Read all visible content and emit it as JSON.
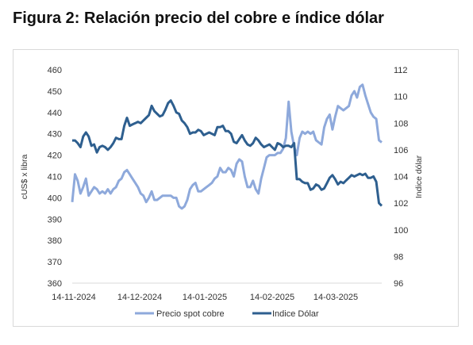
{
  "figure_title": "Figura 2: Relación precio del cobre e índice dólar",
  "chart_data": {
    "type": "line",
    "title": "",
    "ylabel": "cUS$ x libra",
    "y2label": "Indice dólar",
    "ylim": [
      360,
      460
    ],
    "y2lim": [
      96,
      112
    ],
    "yticks": [
      "460",
      "450",
      "440",
      "430",
      "420",
      "410",
      "400",
      "390",
      "380",
      "370",
      "360"
    ],
    "y2ticks": [
      "112",
      "110",
      "108",
      "106",
      "104",
      "102",
      "100",
      "98",
      "96"
    ],
    "xticks": [
      "14-11-2024",
      "14-12-2024",
      "14-01-2025",
      "14-02-2025",
      "14-03-2025"
    ],
    "grid": false,
    "legend_position": "bottom",
    "series": [
      {
        "name": "Precio spot cobre",
        "axis": "left",
        "color": "#8ea9db",
        "values": [
          398,
          411,
          408,
          402,
          405,
          409,
          401,
          403,
          405,
          404,
          402,
          403,
          402,
          404,
          402,
          404,
          405,
          408,
          409,
          412,
          413,
          411,
          409,
          407,
          405,
          402,
          401,
          398,
          400,
          403,
          399,
          399,
          400,
          401,
          401,
          401,
          401,
          400,
          400,
          396,
          395,
          396,
          399,
          404,
          406,
          407,
          403,
          403,
          404,
          405,
          406,
          407,
          409,
          410,
          414,
          412,
          412,
          414,
          413,
          410,
          416,
          418,
          417,
          410,
          405,
          405,
          408,
          404,
          402,
          409,
          414,
          419,
          420,
          420,
          420,
          421,
          421,
          423,
          428,
          445,
          431,
          424,
          420,
          428,
          431,
          430,
          431,
          430,
          431,
          427,
          426,
          425,
          433,
          437,
          439,
          432,
          438,
          443,
          442,
          441,
          442,
          443,
          448,
          450,
          447,
          452,
          453,
          448,
          444,
          440,
          438,
          437,
          427,
          426
        ]
      },
      {
        "name": "Indice Dólar",
        "axis": "right",
        "color": "#2e5f8f",
        "values": [
          106.7,
          106.7,
          106.5,
          106.2,
          107.0,
          107.3,
          107.0,
          106.3,
          106.4,
          105.8,
          106.2,
          106.3,
          106.2,
          106.0,
          106.2,
          106.5,
          106.9,
          106.8,
          106.8,
          107.8,
          108.4,
          107.8,
          107.9,
          108.0,
          108.1,
          108.0,
          108.2,
          108.4,
          108.6,
          109.3,
          108.9,
          108.7,
          108.5,
          108.6,
          109.0,
          109.5,
          109.7,
          109.3,
          108.8,
          108.7,
          108.2,
          108.0,
          107.7,
          107.2,
          107.3,
          107.3,
          107.5,
          107.4,
          107.1,
          107.2,
          107.3,
          107.2,
          107.1,
          107.7,
          107.7,
          107.8,
          107.4,
          107.4,
          107.2,
          106.6,
          106.5,
          106.8,
          107.1,
          106.7,
          106.4,
          106.3,
          106.5,
          106.9,
          106.7,
          106.4,
          106.2,
          106.3,
          106.4,
          106.2,
          106.0,
          106.5,
          106.4,
          106.2,
          106.3,
          106.3,
          106.2,
          106.5,
          103.8,
          103.8,
          103.6,
          103.5,
          103.5,
          103.0,
          103.1,
          103.4,
          103.3,
          103.0,
          103.1,
          103.5,
          103.9,
          104.1,
          103.8,
          103.4,
          103.6,
          103.5,
          103.7,
          103.9,
          104.1,
          104.0,
          104.1,
          104.2,
          104.1,
          104.2,
          103.9,
          103.9,
          104.0,
          103.6,
          102.0,
          101.8
        ]
      }
    ]
  }
}
